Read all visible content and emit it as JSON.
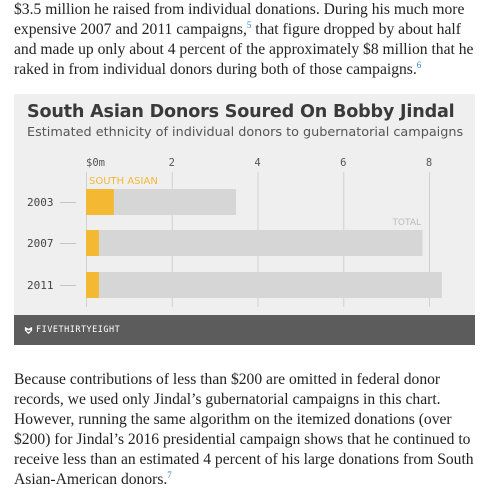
{
  "article": {
    "para1": "$3.5 million he raised from individual donations. During his much more expensive 2007 and 2011 campaigns,",
    "para1_note1": "5",
    "para1_mid": " that figure dropped by about half and made up only about 4 percent of the approximately $8 million that he raked in from individual donors during both of those campaigns.",
    "para1_note2": "6",
    "para2": "Because contributions of less than $200 are omitted in federal donor records, we used only Jindal’s gubernatorial campaigns in this chart. However, running the same algorithm on the itemized donations (over $200) for Jindal’s 2016 presidential campaign shows that he continued to receive less than an estimated 4 percent of his large donations from South Asian-American donors.",
    "para2_note": "7"
  },
  "chart_data": {
    "type": "bar",
    "orientation": "horizontal",
    "title": "South Asian Donors Soured On Bobby Jindal",
    "subtitle": "Estimated ethnicity of individual donors to gubernatorial campaigns",
    "categories": [
      "2003",
      "2007",
      "2011"
    ],
    "series": [
      {
        "name": "SOUTH ASIAN",
        "values": [
          0.65,
          0.3,
          0.3
        ],
        "color": "#f5b833"
      },
      {
        "name": "TOTAL",
        "values": [
          3.5,
          7.85,
          8.3
        ],
        "color": "#d6d6d6"
      }
    ],
    "x_ticks": [
      "$0m",
      "2",
      "4",
      "6",
      "8"
    ],
    "x_tick_values": [
      0,
      2,
      4,
      6,
      8
    ],
    "xlim": [
      0,
      8.3
    ],
    "grid": true,
    "legend": "inline labels"
  },
  "footer": {
    "brand": "FIVETHIRTYEIGHT"
  },
  "colors": {
    "panel": "#efefef",
    "footer": "#5c5c5c",
    "accent": "#f5b833",
    "total": "#d6d6d6"
  }
}
